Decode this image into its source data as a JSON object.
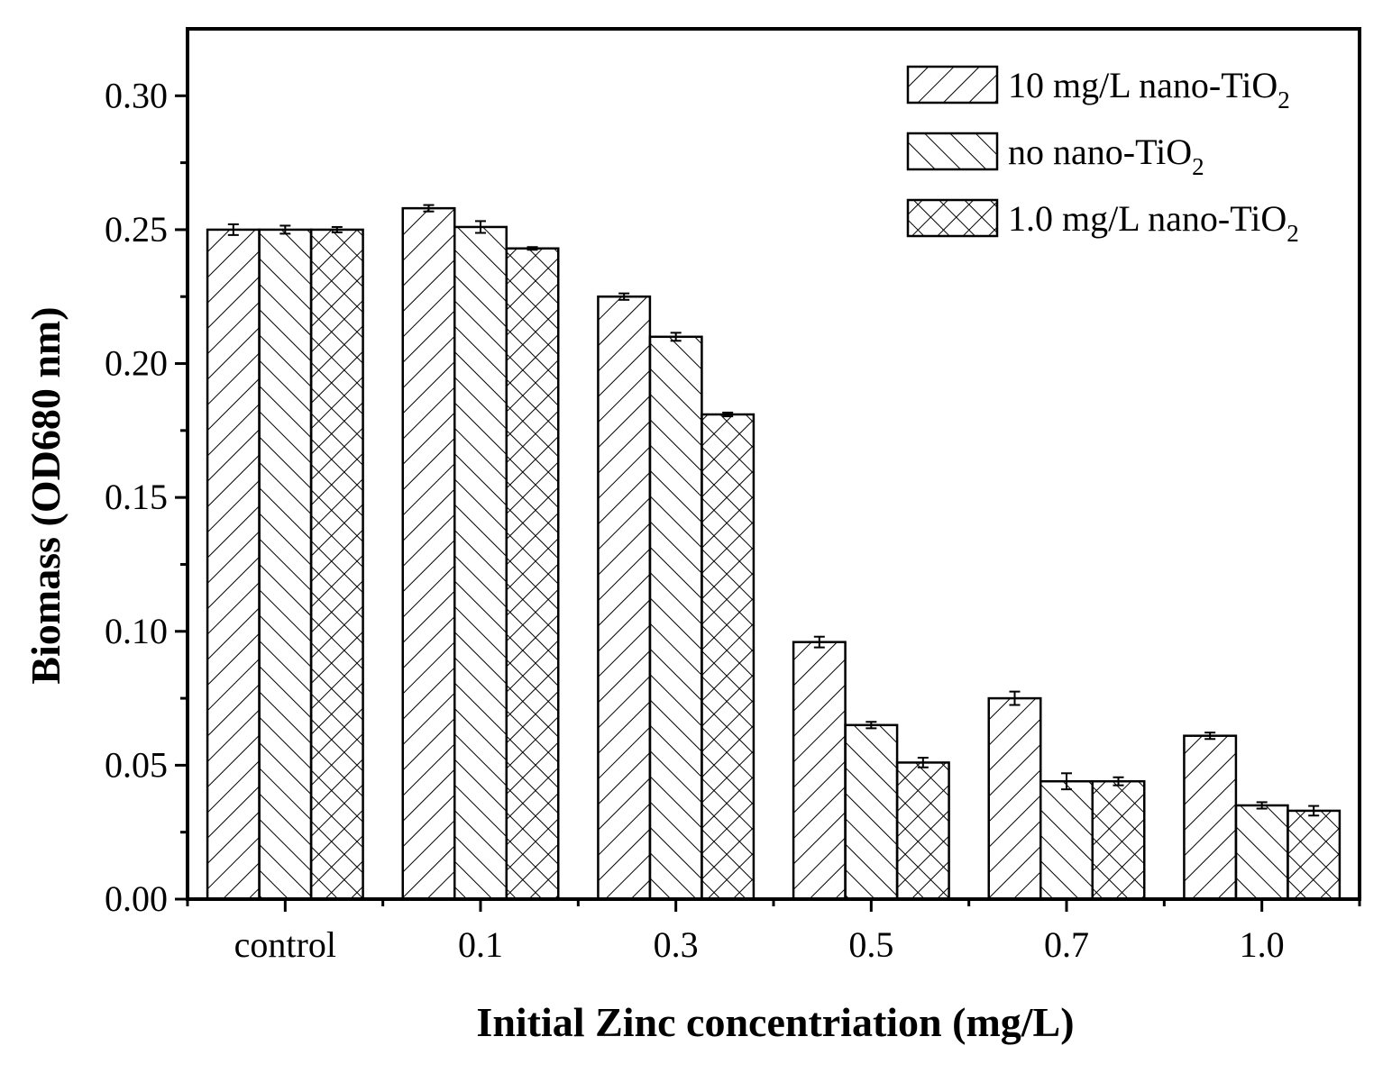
{
  "colors": {
    "ink": "#000000",
    "background": "#ffffff"
  },
  "chart_data": {
    "type": "bar",
    "title": "",
    "xlabel": "Initial Zinc concentriation (mg/L)",
    "ylabel": "Biomass (OD680 nm)",
    "ylim": [
      0,
      0.325
    ],
    "yticks": [
      "0.00",
      "0.05",
      "0.10",
      "0.15",
      "0.20",
      "0.25",
      "0.30"
    ],
    "categories": [
      "control",
      "0.1",
      "0.3",
      "0.5",
      "0.7",
      "1.0"
    ],
    "legend_position": "top-right",
    "series": [
      {
        "name": "10 mg/L nano-TiO",
        "subscript": "2",
        "pattern": "forward-diagonal",
        "values": [
          0.25,
          0.258,
          0.225,
          0.096,
          0.075,
          0.061
        ],
        "errors": [
          0.002,
          0.0012,
          0.0012,
          0.002,
          0.0025,
          0.0012
        ]
      },
      {
        "name": "no nano-TiO",
        "subscript": "2",
        "pattern": "back-diagonal",
        "values": [
          0.25,
          0.251,
          0.21,
          0.065,
          0.044,
          0.035
        ],
        "errors": [
          0.0015,
          0.0022,
          0.0015,
          0.0012,
          0.003,
          0.0012
        ]
      },
      {
        "name": "1.0 mg/L nano-TiO",
        "subscript": "2",
        "pattern": "crosshatch",
        "values": [
          0.25,
          0.243,
          0.181,
          0.051,
          0.044,
          0.033
        ],
        "errors": [
          0.001,
          0.0005,
          0.0007,
          0.0018,
          0.0015,
          0.0018
        ]
      }
    ]
  }
}
